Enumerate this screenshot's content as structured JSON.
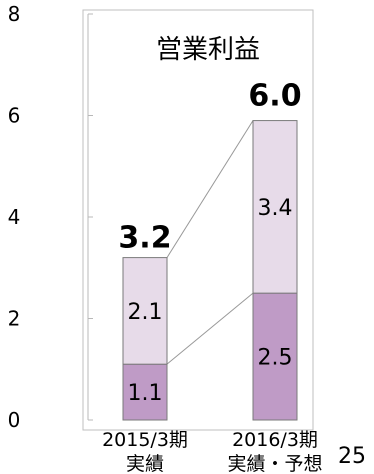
{
  "chart_data": {
    "type": "bar",
    "stacked": true,
    "title": "営業利益",
    "categories": [
      [
        "2015/3期",
        "実績"
      ],
      [
        "2016/3期",
        "実績・予想"
      ]
    ],
    "series": [
      {
        "values": [
          1.1,
          2.5
        ],
        "color": "#bf9bc6"
      },
      {
        "values": [
          2.1,
          3.4
        ],
        "color": "#e7dbe9"
      }
    ],
    "segment_labels": [
      [
        "1.1",
        "2.1"
      ],
      [
        "2.5",
        "3.4"
      ]
    ],
    "totals": [
      3.2,
      6.0
    ],
    "total_labels": [
      "3.2",
      "6.0"
    ],
    "ylim": [
      0,
      8
    ],
    "yticks": [
      0,
      2,
      4,
      6,
      8
    ],
    "ytick_labels": [
      "0",
      "2",
      "4",
      "6",
      "8"
    ],
    "grid": false,
    "legend": "none",
    "colors": {
      "axis": "#b8b8b8",
      "bar_stroke": "#7a7a7a",
      "frame": "#bfbfbf"
    }
  },
  "page_number": "25"
}
